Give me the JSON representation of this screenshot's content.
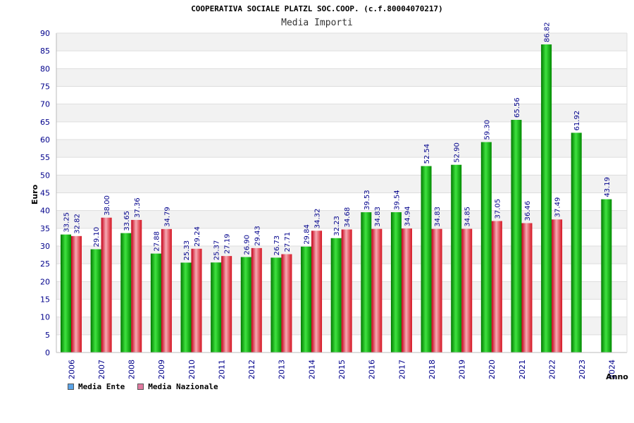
{
  "chart_data": {
    "type": "bar",
    "title": "COOPERATIVA SOCIALE PLATZL SOC.COOP. (c.f.80004070217)",
    "subtitle": "Media Importi",
    "ylabel": "Euro",
    "xlabel": "Anno",
    "ylim": [
      0,
      90
    ],
    "yticks": [
      0,
      5,
      10,
      15,
      20,
      25,
      30,
      35,
      40,
      45,
      50,
      55,
      60,
      65,
      70,
      75,
      80,
      85,
      90
    ],
    "grid": true,
    "legend_position": "bottom-left",
    "categories": [
      "2006",
      "2007",
      "2008",
      "2009",
      "2010",
      "2011",
      "2012",
      "2013",
      "2014",
      "2015",
      "2016",
      "2017",
      "2018",
      "2019",
      "2020",
      "2021",
      "2022",
      "2023",
      "2024"
    ],
    "series": [
      {
        "name": "Media Ente",
        "color": "#00b000",
        "legend_color": "#5ba3e6",
        "values": [
          33.25,
          29.1,
          33.65,
          27.88,
          25.33,
          25.37,
          26.9,
          26.73,
          29.84,
          32.23,
          39.53,
          39.54,
          52.54,
          52.9,
          59.3,
          65.56,
          86.82,
          61.92,
          43.19
        ],
        "labels": [
          "33.25",
          "29.10",
          "33.65",
          "27.88",
          "25.33",
          "25.37",
          "26.90",
          "26.73",
          "29.84",
          "32.23",
          "39.53",
          "39.54",
          "52.54",
          "52.90",
          "59.30",
          "65.56",
          "86.82",
          "61.92",
          "43.19"
        ]
      },
      {
        "name": "Media Nazionale",
        "color": "#e0202c",
        "legend_color": "#e07aa0",
        "values": [
          32.82,
          38.0,
          37.36,
          34.79,
          29.24,
          27.19,
          29.43,
          27.71,
          34.32,
          34.68,
          34.83,
          34.94,
          34.83,
          34.85,
          37.05,
          36.46,
          37.49,
          null,
          null
        ],
        "labels": [
          "32.82",
          "38.00",
          "37.36",
          "34.79",
          "29.24",
          "27.19",
          "29.43",
          "27.71",
          "34.32",
          "34.68",
          "34.83",
          "34.94",
          "34.83",
          "34.85",
          "37.05",
          "36.46",
          "37.49",
          null,
          null
        ]
      }
    ]
  }
}
